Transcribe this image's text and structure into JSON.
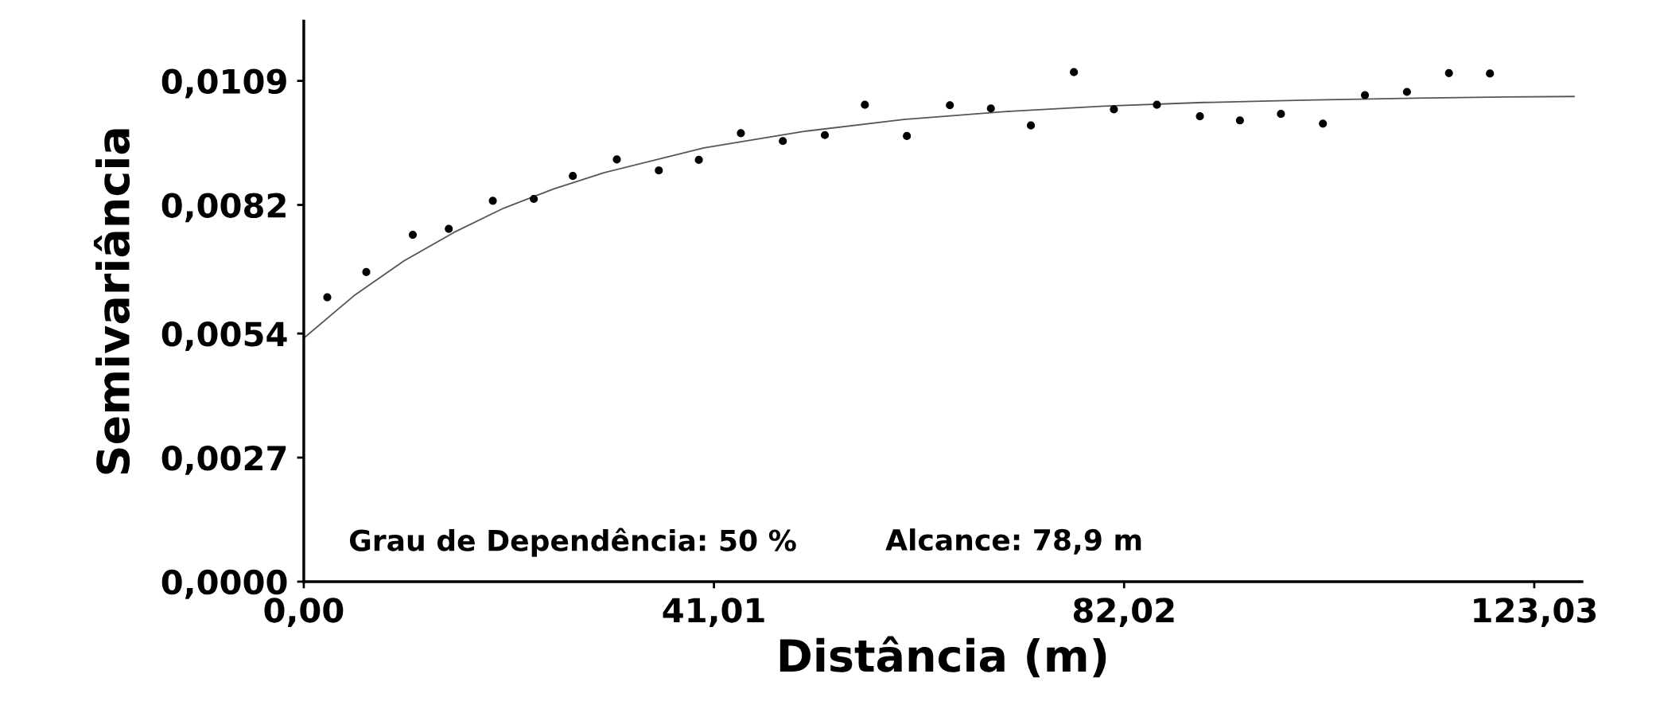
{
  "chart_data": {
    "type": "scatter",
    "xlabel": "Distância (m)",
    "ylabel": "Semivariância",
    "annotations": [
      "Grau de Dependência: 50 %",
      "Alcance: 78,9 m"
    ],
    "series": [
      {
        "color": "#000000",
        "marker": "circle",
        "x": [
          2.35,
          6.25,
          10.9,
          14.5,
          18.9,
          23.0,
          26.9,
          31.3,
          35.5,
          39.5,
          43.7,
          47.9,
          52.1,
          56.1,
          60.3,
          64.6,
          68.7,
          72.7,
          77.0,
          81.0,
          85.3,
          89.6,
          93.6,
          97.7,
          101.9,
          106.1,
          110.3,
          114.5,
          118.6
        ],
        "values": [
          0.00619,
          0.00674,
          0.00755,
          0.00768,
          0.00829,
          0.00833,
          0.00883,
          0.00919,
          0.00895,
          0.00918,
          0.00976,
          0.00959,
          0.00972,
          0.01038,
          0.0097,
          0.01037,
          0.0103,
          0.00993,
          0.01109,
          0.01028,
          0.01038,
          0.01013,
          0.01004,
          0.01018,
          0.00997,
          0.01059,
          0.01066,
          0.01107,
          0.01106
        ]
      },
      {
        "type": "line",
        "color": "#555555",
        "marker": "none",
        "line_style": "solid",
        "x": [
          0,
          5,
          10,
          15,
          20,
          25,
          30,
          40,
          50,
          60,
          70,
          80,
          90,
          100,
          110,
          120,
          127
        ],
        "values": [
          0.0053,
          0.00622,
          0.00698,
          0.0076,
          0.00813,
          0.00855,
          0.0089,
          0.00944,
          0.0098,
          0.01006,
          0.01023,
          0.01035,
          0.01043,
          0.01048,
          0.01052,
          0.01055,
          0.01056
        ]
      }
    ],
    "xlim": [
      0,
      127.8
    ],
    "ylim": [
      0,
      0.0122
    ],
    "xticks": [
      {
        "value": 0,
        "label": "0,00"
      },
      {
        "value": 41.01,
        "label": "41,01"
      },
      {
        "value": 82.02,
        "label": "82,02"
      },
      {
        "value": 123.03,
        "label": "123,03"
      }
    ],
    "yticks": [
      {
        "value": 0,
        "label": "0,0000"
      },
      {
        "value": 0.0027,
        "label": "0,0027"
      },
      {
        "value": 0.0054,
        "label": "0,0054"
      },
      {
        "value": 0.0082,
        "label": "0,0082"
      },
      {
        "value": 0.0109,
        "label": "0,0109"
      }
    ],
    "grid": false
  }
}
